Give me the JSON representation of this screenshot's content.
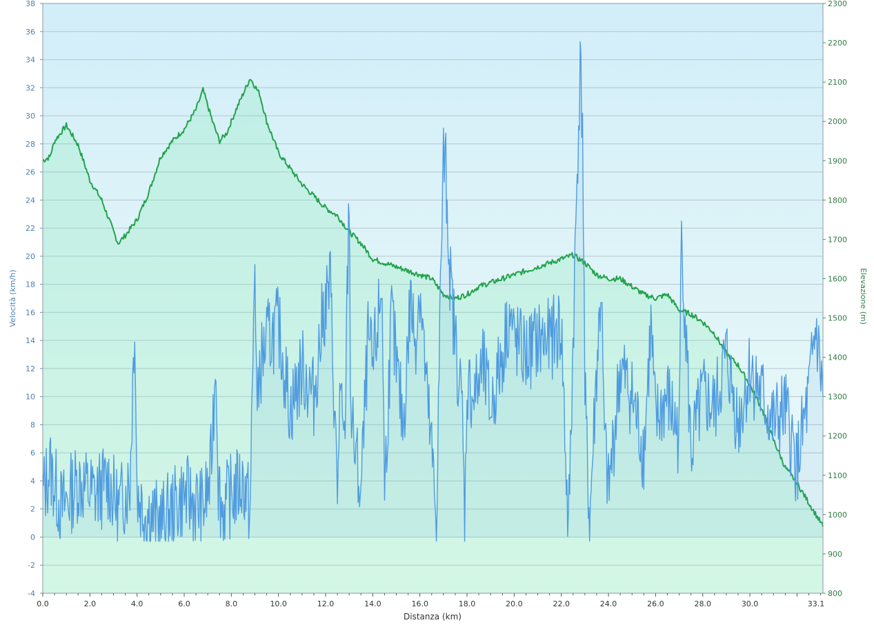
{
  "chart_data": {
    "type": "area",
    "xlabel": "Distanza  (km)",
    "ylabel_left": "Velocità (km/h)",
    "ylabel_right": "Elevazione (m)",
    "x_range": [
      0,
      33.1
    ],
    "ylim_left": [
      -4,
      38
    ],
    "ylim_right": [
      800,
      2300
    ],
    "x_ticks": [
      "0.0",
      "2.0",
      "4.0",
      "6.0",
      "8.0",
      "10.0",
      "12.0",
      "14.0",
      "16.0",
      "18.0",
      "20.0",
      "22.0",
      "24.0",
      "26.0",
      "28.0",
      "30.0",
      "33.1"
    ],
    "y_left_ticks": [
      "-4",
      "-2",
      "0",
      "2",
      "4",
      "6",
      "8",
      "10",
      "12",
      "14",
      "16",
      "18",
      "20",
      "22",
      "24",
      "26",
      "28",
      "30",
      "32",
      "34",
      "36",
      "38"
    ],
    "y_right_ticks": [
      "800",
      "900",
      "1000",
      "1100",
      "1200",
      "1300",
      "1400",
      "1500",
      "1600",
      "1700",
      "1800",
      "1900",
      "2000",
      "2100",
      "2200",
      "2300"
    ],
    "grid": true,
    "colors": {
      "velocity": "#4f9be0",
      "elevation": "#22a34a",
      "background_top": "#d3eff9",
      "background_bottom": "#effbf8",
      "grid": "#b4c6ce"
    },
    "series": [
      {
        "name": "Velocità",
        "axis": "left",
        "x": [
          0.0,
          0.3,
          0.8,
          1.5,
          2.2,
          2.8,
          3.2,
          3.7,
          3.9,
          4.0,
          4.3,
          5.0,
          6.0,
          6.8,
          7.1,
          7.35,
          7.45,
          7.6,
          8.0,
          8.5,
          8.8,
          9.0,
          9.1,
          9.2,
          9.5,
          10.0,
          10.5,
          11.0,
          11.5,
          11.9,
          12.2,
          12.5,
          12.6,
          12.8,
          13.0,
          13.05,
          13.1,
          13.5,
          13.8,
          14.0,
          14.4,
          14.5,
          14.8,
          15.0,
          15.3,
          15.6,
          15.8,
          16.0,
          16.3,
          16.5,
          16.7,
          16.9,
          17.0,
          17.1,
          17.3,
          17.5,
          17.8,
          17.9,
          18.0,
          18.3,
          18.7,
          19.0,
          19.5,
          19.8,
          20.0,
          20.5,
          21.0,
          21.5,
          22.0,
          22.3,
          22.5,
          22.7,
          22.8,
          22.9,
          23.0,
          23.2,
          23.5,
          23.7,
          23.8,
          24.0,
          24.5,
          25.0,
          25.5,
          25.8,
          26.0,
          26.5,
          27.0,
          27.1,
          27.5,
          28.0,
          28.5,
          29.0,
          29.5,
          30.0,
          30.5,
          31.0,
          31.5,
          32.0,
          32.5,
          32.8,
          33.1
        ],
        "values": [
          3,
          5,
          2,
          4,
          3,
          4,
          2,
          4,
          16,
          3,
          2,
          1,
          3,
          2,
          4,
          13,
          4,
          2,
          3,
          4,
          2,
          20,
          8,
          12,
          14,
          15,
          9,
          12,
          10,
          16,
          18,
          3,
          10,
          6,
          25,
          12,
          8,
          3,
          14,
          12,
          18,
          3,
          16,
          12,
          8,
          17,
          14,
          18,
          10,
          6,
          1,
          20,
          27,
          26,
          18,
          14,
          9,
          1,
          11,
          10,
          12,
          9,
          13,
          16,
          14,
          13,
          14,
          14,
          15,
          0,
          14,
          28,
          33,
          30,
          10,
          1,
          12,
          18,
          8,
          3,
          12,
          10,
          6,
          15,
          8,
          10,
          7,
          22,
          6,
          10,
          9,
          13,
          8,
          12,
          10,
          8,
          9,
          5,
          10,
          15,
          10
        ]
      },
      {
        "name": "Elevazione",
        "axis": "right",
        "x": [
          0.0,
          0.3,
          0.5,
          1.0,
          1.5,
          2.0,
          2.5,
          3.0,
          3.2,
          3.5,
          4.0,
          4.5,
          5.0,
          5.5,
          6.0,
          6.5,
          6.8,
          7.2,
          7.5,
          7.8,
          8.2,
          8.5,
          8.8,
          9.2,
          9.5,
          10.0,
          10.5,
          11.0,
          11.5,
          12.0,
          12.5,
          13.0,
          13.5,
          14.0,
          14.5,
          15.0,
          15.5,
          16.0,
          16.5,
          17.0,
          17.5,
          18.0,
          18.5,
          19.0,
          19.5,
          20.0,
          20.5,
          21.0,
          21.5,
          22.0,
          22.5,
          23.0,
          23.5,
          24.0,
          24.5,
          25.0,
          25.5,
          26.0,
          26.5,
          27.0,
          27.5,
          28.0,
          28.5,
          29.0,
          29.5,
          30.0,
          30.5,
          31.0,
          31.5,
          32.0,
          32.5,
          33.1
        ],
        "values": [
          1900,
          1910,
          1950,
          1990,
          1940,
          1850,
          1800,
          1720,
          1690,
          1710,
          1750,
          1820,
          1910,
          1950,
          1980,
          2030,
          2080,
          2000,
          1950,
          1970,
          2030,
          2070,
          2110,
          2070,
          2000,
          1920,
          1880,
          1840,
          1810,
          1780,
          1760,
          1720,
          1690,
          1650,
          1640,
          1630,
          1620,
          1610,
          1600,
          1560,
          1550,
          1560,
          1580,
          1590,
          1600,
          1610,
          1620,
          1630,
          1640,
          1650,
          1660,
          1640,
          1610,
          1600,
          1600,
          1580,
          1560,
          1550,
          1560,
          1520,
          1510,
          1490,
          1460,
          1410,
          1380,
          1330,
          1270,
          1190,
          1120,
          1080,
          1030,
          970
        ]
      }
    ]
  }
}
